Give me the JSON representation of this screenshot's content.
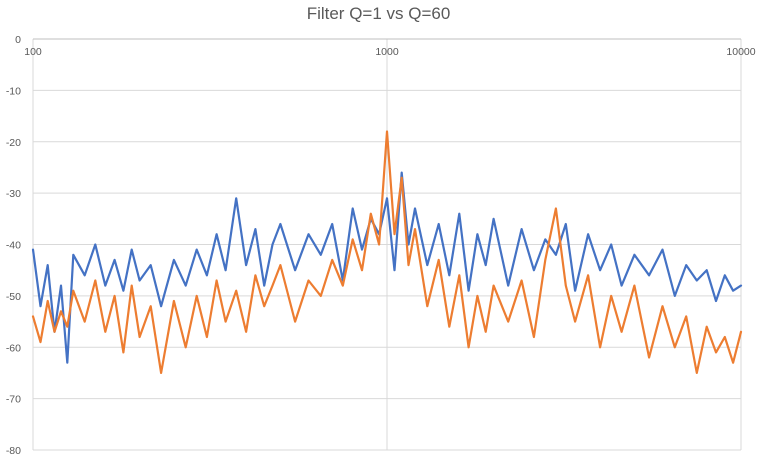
{
  "chart_data": {
    "type": "line",
    "title": "Filter Q=1 vs Q=60",
    "xscale": "log",
    "xlim": [
      100,
      10000
    ],
    "ylim": [
      -80,
      0
    ],
    "x_ticks": [
      100,
      1000,
      10000
    ],
    "x_tick_labels": [
      "100",
      "1000",
      "10000"
    ],
    "y_ticks": [
      0,
      -10,
      -20,
      -30,
      -40,
      -50,
      -60,
      -70,
      -80
    ],
    "y_tick_labels": [
      "0",
      "-10",
      "-20",
      "-30",
      "-40",
      "-50",
      "-60",
      "-70",
      "-80"
    ],
    "grid": true,
    "legend": "none",
    "series": [
      {
        "name": "Q=1",
        "color": "#4472C4",
        "x": [
          100,
          105,
          110,
          115,
          120,
          125,
          130,
          140,
          150,
          160,
          170,
          180,
          190,
          200,
          215,
          230,
          250,
          270,
          290,
          310,
          330,
          350,
          375,
          400,
          425,
          450,
          475,
          500,
          550,
          600,
          650,
          700,
          750,
          800,
          850,
          900,
          950,
          1000,
          1050,
          1100,
          1150,
          1200,
          1300,
          1400,
          1500,
          1600,
          1700,
          1800,
          1900,
          2000,
          2200,
          2400,
          2600,
          2800,
          3000,
          3200,
          3400,
          3700,
          4000,
          4300,
          4600,
          5000,
          5500,
          6000,
          6500,
          7000,
          7500,
          8000,
          8500,
          9000,
          9500,
          10000
        ],
        "values": [
          -41,
          -52,
          -44,
          -57,
          -48,
          -63,
          -42,
          -46,
          -40,
          -48,
          -43,
          -49,
          -41,
          -47,
          -44,
          -52,
          -43,
          -48,
          -41,
          -46,
          -38,
          -45,
          -31,
          -44,
          -37,
          -48,
          -40,
          -36,
          -45,
          -38,
          -42,
          -36,
          -47,
          -33,
          -41,
          -35,
          -38,
          -31,
          -45,
          -26,
          -40,
          -33,
          -44,
          -36,
          -46,
          -34,
          -49,
          -38,
          -44,
          -35,
          -48,
          -37,
          -45,
          -39,
          -42,
          -36,
          -49,
          -38,
          -45,
          -40,
          -48,
          -42,
          -46,
          -41,
          -50,
          -44,
          -47,
          -45,
          -51,
          -46,
          -49,
          -48
        ]
      },
      {
        "name": "Q=60",
        "color": "#ED7D31",
        "x": [
          100,
          105,
          110,
          115,
          120,
          125,
          130,
          140,
          150,
          160,
          170,
          180,
          190,
          200,
          215,
          230,
          250,
          270,
          290,
          310,
          330,
          350,
          375,
          400,
          425,
          450,
          475,
          500,
          550,
          600,
          650,
          700,
          750,
          800,
          850,
          900,
          950,
          1000,
          1050,
          1100,
          1150,
          1200,
          1300,
          1400,
          1500,
          1600,
          1700,
          1800,
          1900,
          2000,
          2200,
          2400,
          2600,
          2800,
          3000,
          3200,
          3400,
          3700,
          4000,
          4300,
          4600,
          5000,
          5500,
          6000,
          6500,
          7000,
          7500,
          8000,
          8500,
          9000,
          9500,
          10000
        ],
        "values": [
          -54,
          -59,
          -51,
          -57,
          -53,
          -56,
          -49,
          -55,
          -47,
          -57,
          -50,
          -61,
          -48,
          -58,
          -52,
          -65,
          -51,
          -60,
          -50,
          -58,
          -47,
          -55,
          -49,
          -57,
          -46,
          -52,
          -48,
          -44,
          -55,
          -47,
          -50,
          -43,
          -48,
          -39,
          -45,
          -34,
          -40,
          -18,
          -38,
          -27,
          -44,
          -37,
          -52,
          -43,
          -56,
          -46,
          -60,
          -50,
          -57,
          -48,
          -55,
          -47,
          -58,
          -43,
          -33,
          -48,
          -55,
          -46,
          -60,
          -50,
          -57,
          -48,
          -62,
          -52,
          -60,
          -54,
          -65,
          -56,
          -61,
          -58,
          -63,
          -57
        ]
      }
    ]
  }
}
